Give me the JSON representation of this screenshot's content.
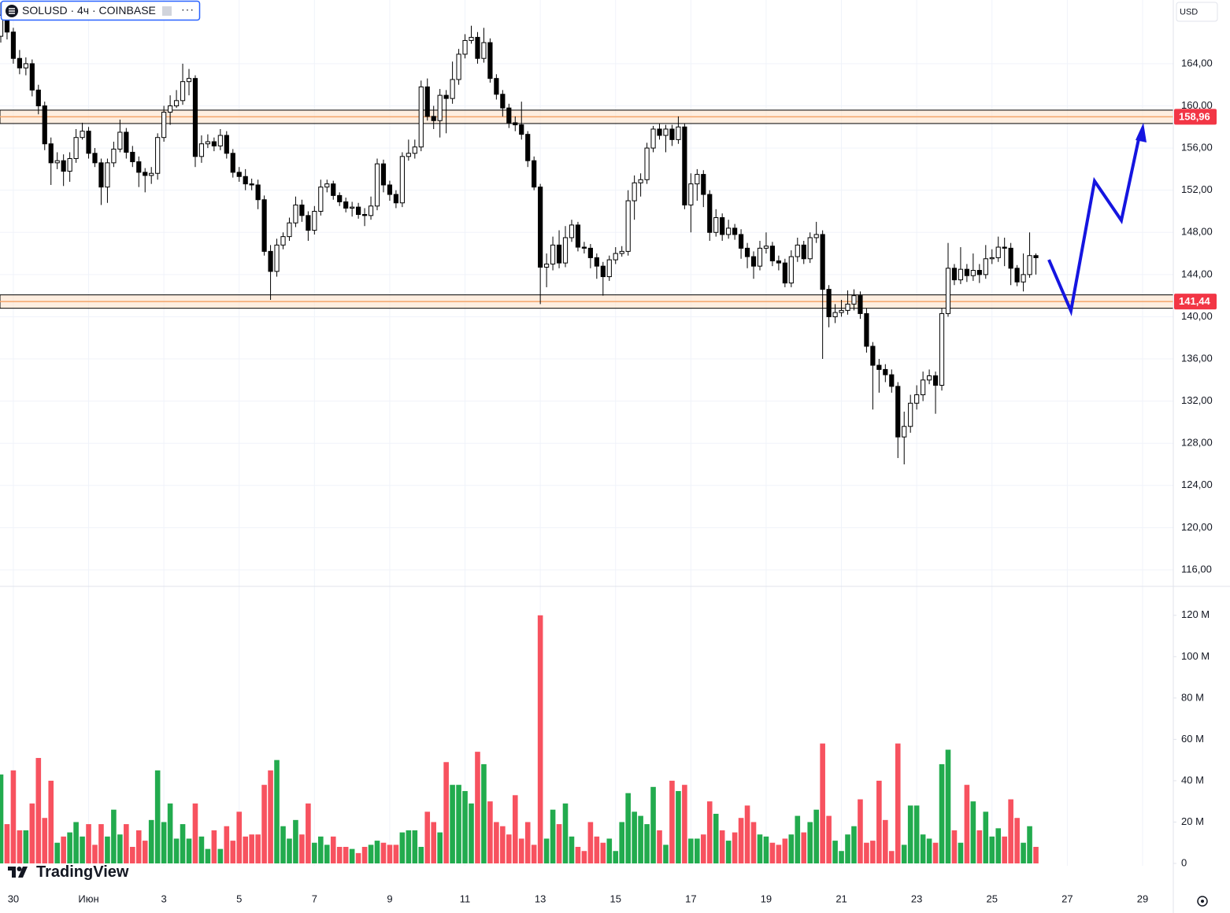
{
  "header": {
    "symbol": "SOLUSD · 4ч · COINBASE",
    "currency": "USD",
    "logo": "TradingView"
  },
  "chart_data": [
    {
      "type": "candlestick",
      "x": [
        -8,
        -4,
        0,
        4,
        8,
        12,
        16,
        20,
        24,
        28,
        32,
        36,
        40,
        44,
        48,
        52,
        56,
        60,
        64,
        68,
        72,
        76,
        80,
        84,
        88,
        92,
        96,
        100,
        104,
        108,
        112,
        116,
        120,
        124,
        128,
        132,
        136,
        140,
        144,
        148,
        152,
        156,
        160,
        164,
        168,
        172,
        176,
        180,
        184,
        188,
        192,
        196,
        200,
        204,
        208,
        212,
        216,
        220,
        224,
        228,
        232,
        236,
        240,
        244,
        248,
        252,
        256,
        260,
        264,
        268,
        272,
        276,
        280,
        284,
        288,
        292,
        296,
        300,
        304,
        308,
        312,
        316,
        320,
        324,
        328,
        332,
        336,
        340,
        344,
        348,
        352,
        356,
        360,
        364,
        368,
        372,
        376,
        380,
        384,
        388,
        392,
        396,
        400,
        404,
        408,
        412,
        416,
        420,
        424,
        428,
        432,
        436,
        440,
        444,
        448,
        452,
        456,
        460,
        464,
        468,
        472,
        476,
        480,
        484,
        488,
        492,
        496,
        500,
        504,
        508,
        512,
        516,
        520,
        524,
        528,
        532,
        536,
        540,
        544,
        548,
        552,
        556,
        560,
        564,
        568,
        572,
        576,
        580,
        584,
        588,
        592,
        596,
        600,
        604,
        608,
        612,
        616,
        620,
        624,
        628,
        632,
        636,
        640,
        644,
        648,
        652
      ],
      "open": [
        166.6,
        168.6,
        167.0,
        164.5,
        163.6,
        164.0,
        161.5,
        160.0,
        156.4,
        154.6,
        154.8,
        153.8,
        155.0,
        157.0,
        157.6,
        155.5,
        154.6,
        152.3,
        154.6,
        155.9,
        157.5,
        155.6,
        154.7,
        153.7,
        153.4,
        153.6,
        157.0,
        159.4,
        160.0,
        160.5,
        162.3,
        162.6,
        155.2,
        156.4,
        156.6,
        156.2,
        157.2,
        155.5,
        153.7,
        153.3,
        152.6,
        152.5,
        151.1,
        146.2,
        144.3,
        146.8,
        147.6,
        148.9,
        150.6,
        149.6,
        148.2,
        150.0,
        152.3,
        152.6,
        151.5,
        150.9,
        150.3,
        150.4,
        149.7,
        149.6,
        150.5,
        154.5,
        152.5,
        151.6,
        150.8,
        155.2,
        155.5,
        156.1,
        161.8,
        159.0,
        158.6,
        161.0,
        160.7,
        162.5,
        164.9,
        166.2,
        166.5,
        164.5,
        166.0,
        162.6,
        161.1,
        159.8,
        158.4,
        158.2,
        157.3,
        154.8,
        152.3,
        144.7,
        145.0,
        146.8,
        145.1,
        147.5,
        148.7,
        146.6,
        146.5,
        145.6,
        144.8,
        143.8,
        145.4,
        146.0,
        146.2,
        151.0,
        152.7,
        153.0,
        156.0,
        157.8,
        157.2,
        157.8,
        156.8,
        158.0,
        150.6,
        152.6,
        153.5,
        151.6,
        148.0,
        149.4,
        147.8,
        148.4,
        147.8,
        146.5,
        145.7,
        144.8,
        146.5,
        146.7,
        145.3,
        145.1,
        143.2,
        145.7,
        146.8,
        145.5,
        147.5,
        147.8,
        142.6,
        140.0,
        140.4,
        140.6,
        141.2,
        142.0,
        140.3,
        137.2,
        135.4,
        135.0,
        134.5,
        133.4,
        128.6,
        129.6,
        131.8,
        132.6,
        134.0,
        134.4,
        133.5,
        140.3,
        144.6,
        143.5,
        144.5,
        143.9,
        144.4,
        144.0,
        145.5,
        145.6,
        146.6,
        146.5,
        144.6,
        143.3,
        144.0,
        145.8
      ],
      "high": [
        169.8,
        169.2,
        167.4,
        165.3,
        164.6,
        164.4,
        162.0,
        160.4,
        157.0,
        155.6,
        155.4,
        155.6,
        157.8,
        158.4,
        158.0,
        156.0,
        155.0,
        155.0,
        156.6,
        158.7,
        157.9,
        156.2,
        155.2,
        154.1,
        154.2,
        157.4,
        160.0,
        161.0,
        161.5,
        164.0,
        163.5,
        162.9,
        157.2,
        157.3,
        157.0,
        157.8,
        157.6,
        155.9,
        154.2,
        154.0,
        153.1,
        153.0,
        151.5,
        146.8,
        147.4,
        148.0,
        149.4,
        151.4,
        151.1,
        150.0,
        150.5,
        153.0,
        153.0,
        152.9,
        151.8,
        151.3,
        150.9,
        150.8,
        150.3,
        151.4,
        155.0,
        154.9,
        152.9,
        152.0,
        155.6,
        156.8,
        156.8,
        162.4,
        162.6,
        160.0,
        161.6,
        161.5,
        164.2,
        165.4,
        166.8,
        167.6,
        167.0,
        167.4,
        166.4,
        163.0,
        161.5,
        160.2,
        159.0,
        160.4,
        157.6,
        155.2,
        152.6,
        146.0,
        147.6,
        148.2,
        148.6,
        149.2,
        149.0,
        147.1,
        146.9,
        146.0,
        145.2,
        145.8,
        146.6,
        146.7,
        152.0,
        153.4,
        153.6,
        156.5,
        158.1,
        158.3,
        158.2,
        158.2,
        159.0,
        158.3,
        153.6,
        154.0,
        153.9,
        152.0,
        150.2,
        149.8,
        149.2,
        148.8,
        148.3,
        147.0,
        146.2,
        147.2,
        148.0,
        147.1,
        145.8,
        145.5,
        146.3,
        147.5,
        147.2,
        148.0,
        149.0,
        148.2,
        143.0,
        141.2,
        141.6,
        142.5,
        142.6,
        142.4,
        140.8,
        137.6,
        136.0,
        135.5,
        135.0,
        133.8,
        131.0,
        132.6,
        133.5,
        134.8,
        135.0,
        134.8,
        140.8,
        147.0,
        145.0,
        146.6,
        145.0,
        146.0,
        145.0,
        146.8,
        146.4,
        147.6,
        147.5,
        147.0,
        144.9,
        146.0,
        148.0,
        146.0
      ],
      "low": [
        166.0,
        166.3,
        164.0,
        163.0,
        162.9,
        160.9,
        159.2,
        155.8,
        152.5,
        154.0,
        152.4,
        152.8,
        154.6,
        156.8,
        155.0,
        154.2,
        150.6,
        150.8,
        154.2,
        155.6,
        155.0,
        154.2,
        152.3,
        151.8,
        152.6,
        153.0,
        156.6,
        158.2,
        159.8,
        160.1,
        161.0,
        154.2,
        154.6,
        156.0,
        155.7,
        155.8,
        155.0,
        153.2,
        152.8,
        152.0,
        152.0,
        150.2,
        145.8,
        141.6,
        143.8,
        146.4,
        147.2,
        148.5,
        149.0,
        147.2,
        147.8,
        149.6,
        151.8,
        151.1,
        150.5,
        149.9,
        149.5,
        149.3,
        148.6,
        149.2,
        150.1,
        151.8,
        151.0,
        150.3,
        150.4,
        154.8,
        155.0,
        155.7,
        158.6,
        157.8,
        157.0,
        157.4,
        160.2,
        162.0,
        164.5,
        165.9,
        164.0,
        164.1,
        162.2,
        160.6,
        159.0,
        157.9,
        157.6,
        156.8,
        154.2,
        152.0,
        141.2,
        142.8,
        144.4,
        144.6,
        144.7,
        147.1,
        146.2,
        146.0,
        144.6,
        143.6,
        142.0,
        143.4,
        145.0,
        145.7,
        145.8,
        149.2,
        151.4,
        152.6,
        155.6,
        156.8,
        155.6,
        156.2,
        156.4,
        150.2,
        148.0,
        151.0,
        150.4,
        147.2,
        147.6,
        147.2,
        147.4,
        147.3,
        145.5,
        144.6,
        143.6,
        144.4,
        146.0,
        144.8,
        144.4,
        142.8,
        142.8,
        145.2,
        145.0,
        145.1,
        147.0,
        136.0,
        139.0,
        139.4,
        140.0,
        140.2,
        140.6,
        139.8,
        136.6,
        131.2,
        132.8,
        133.8,
        132.8,
        126.6,
        126.0,
        129.0,
        131.2,
        132.0,
        133.6,
        130.8,
        133.0,
        140.0,
        143.0,
        143.1,
        143.3,
        143.4,
        143.2,
        143.6,
        145.0,
        145.2,
        144.8,
        143.0,
        142.9,
        142.4,
        143.7,
        144.0
      ],
      "close": [
        168.6,
        167.0,
        164.5,
        163.6,
        164.0,
        161.5,
        160.0,
        156.4,
        154.6,
        154.8,
        153.8,
        155.0,
        157.0,
        157.6,
        155.5,
        154.6,
        152.3,
        154.6,
        155.9,
        157.5,
        155.6,
        154.7,
        153.7,
        153.4,
        153.6,
        157.0,
        159.4,
        160.0,
        160.5,
        162.3,
        162.6,
        155.2,
        156.4,
        156.6,
        156.2,
        157.2,
        155.5,
        153.7,
        153.3,
        152.6,
        152.5,
        151.1,
        146.2,
        144.3,
        146.8,
        147.6,
        148.9,
        150.6,
        149.6,
        148.2,
        150.0,
        152.3,
        152.6,
        151.5,
        150.9,
        150.3,
        150.4,
        149.7,
        149.6,
        150.5,
        154.5,
        152.5,
        151.6,
        150.8,
        155.2,
        155.5,
        156.1,
        161.8,
        159.0,
        158.6,
        161.0,
        160.7,
        162.5,
        164.9,
        166.2,
        166.5,
        164.5,
        166.0,
        162.6,
        161.1,
        159.8,
        158.4,
        158.2,
        157.3,
        154.8,
        152.3,
        144.7,
        145.0,
        146.8,
        145.1,
        147.5,
        148.7,
        146.6,
        146.5,
        145.6,
        144.8,
        143.8,
        145.4,
        146.0,
        146.2,
        151.0,
        152.7,
        153.0,
        156.0,
        157.8,
        157.2,
        157.8,
        156.8,
        158.0,
        150.6,
        152.6,
        153.5,
        151.6,
        148.0,
        149.4,
        147.8,
        148.4,
        147.8,
        146.5,
        145.7,
        144.8,
        146.5,
        146.7,
        145.3,
        145.1,
        143.2,
        145.7,
        146.8,
        145.5,
        147.5,
        147.8,
        142.6,
        140.0,
        140.4,
        140.6,
        141.2,
        142.0,
        140.3,
        137.2,
        135.4,
        135.0,
        134.5,
        133.4,
        128.6,
        129.6,
        131.8,
        132.6,
        134.0,
        134.4,
        133.5,
        140.3,
        144.6,
        143.5,
        144.5,
        143.9,
        144.4,
        144.0,
        145.5,
        145.6,
        146.6,
        146.5,
        144.6,
        143.3,
        144.0,
        145.8,
        145.6
      ],
      "xlim": [
        -8.5,
        739.6
      ],
      "xticks": [
        {
          "value": 0,
          "label": "30"
        },
        {
          "value": 48,
          "label": "Июн"
        },
        {
          "value": 96,
          "label": "3"
        },
        {
          "value": 144,
          "label": "5"
        },
        {
          "value": 192,
          "label": "7"
        },
        {
          "value": 240,
          "label": "9"
        },
        {
          "value": 288,
          "label": "11"
        },
        {
          "value": 336,
          "label": "13"
        },
        {
          "value": 384,
          "label": "15"
        },
        {
          "value": 432,
          "label": "17"
        },
        {
          "value": 480,
          "label": "19"
        },
        {
          "value": 528,
          "label": "21"
        },
        {
          "value": 576,
          "label": "23"
        },
        {
          "value": 624,
          "label": "25"
        },
        {
          "value": 672,
          "label": "27"
        },
        {
          "value": 720,
          "label": "29"
        }
      ],
      "ylim": [
        114.43,
        170.04
      ],
      "yticks": [
        {
          "value": 116,
          "label": "116,00"
        },
        {
          "value": 120,
          "label": "120,00"
        },
        {
          "value": 124,
          "label": "124,00"
        },
        {
          "value": 128,
          "label": "128,00"
        },
        {
          "value": 132,
          "label": "132,00"
        },
        {
          "value": 136,
          "label": "136,00"
        },
        {
          "value": 140,
          "label": "140,00"
        },
        {
          "value": 144,
          "label": "144,00"
        },
        {
          "value": 148,
          "label": "148,00"
        },
        {
          "value": 152,
          "label": "152,00"
        },
        {
          "value": 156,
          "label": "156,00"
        },
        {
          "value": 160,
          "label": "160,00"
        },
        {
          "value": 164,
          "label": "164,00"
        }
      ],
      "levels": [
        {
          "value": 158.96,
          "label": "158,96"
        },
        {
          "value": 141.44,
          "label": "141,44"
        }
      ],
      "grid": true,
      "up_color": "#ffffff",
      "down_color": "#000000",
      "level_color": "#f23645"
    },
    {
      "type": "volume",
      "values": [
        43,
        19,
        45,
        16,
        16,
        29,
        51,
        22,
        40,
        10,
        13,
        15,
        20,
        13,
        19,
        9,
        19,
        13,
        26,
        14,
        19,
        8,
        16,
        11,
        21,
        45,
        20,
        29,
        12,
        19,
        12,
        29,
        13,
        7,
        16,
        7,
        18,
        11,
        25,
        13,
        14,
        14,
        38,
        45,
        50,
        18,
        12,
        21,
        14,
        29,
        10,
        13,
        9,
        13,
        8,
        8,
        7,
        5,
        8,
        9,
        11,
        10,
        9,
        9,
        15,
        16,
        16,
        8,
        25,
        20,
        15,
        49,
        38,
        38,
        35,
        29,
        54,
        48,
        30,
        20,
        18,
        14,
        33,
        12,
        20,
        9,
        120,
        12,
        26,
        19,
        29,
        13,
        8,
        6,
        20,
        13,
        10,
        12,
        6,
        20,
        34,
        25,
        23,
        19,
        37,
        16,
        9,
        40,
        35,
        38,
        12,
        12,
        14,
        30,
        24,
        16,
        11,
        15,
        22,
        28,
        20,
        14,
        13,
        10,
        9,
        12,
        14,
        23,
        15,
        20,
        26,
        58,
        23,
        11,
        6,
        14,
        18,
        31,
        10,
        11,
        40,
        21,
        6,
        58,
        9,
        28,
        28,
        14,
        12,
        10,
        48,
        55,
        16,
        10,
        38,
        30,
        16,
        25,
        13,
        17,
        13,
        31,
        22,
        10,
        18,
        8
      ],
      "ylim": [
        0,
        134
      ],
      "yticks": [
        0,
        {
          "value": 20,
          "label": "20 M"
        },
        {
          "value": 40,
          "label": "40 M"
        },
        {
          "value": 60,
          "label": "60 M"
        },
        {
          "value": 80,
          "label": "80 M"
        },
        {
          "value": 100,
          "label": "100 M"
        },
        {
          "value": 120,
          "label": "120 M"
        }
      ],
      "up_color": "#22ab4e",
      "down_color": "#f7525f"
    }
  ]
}
